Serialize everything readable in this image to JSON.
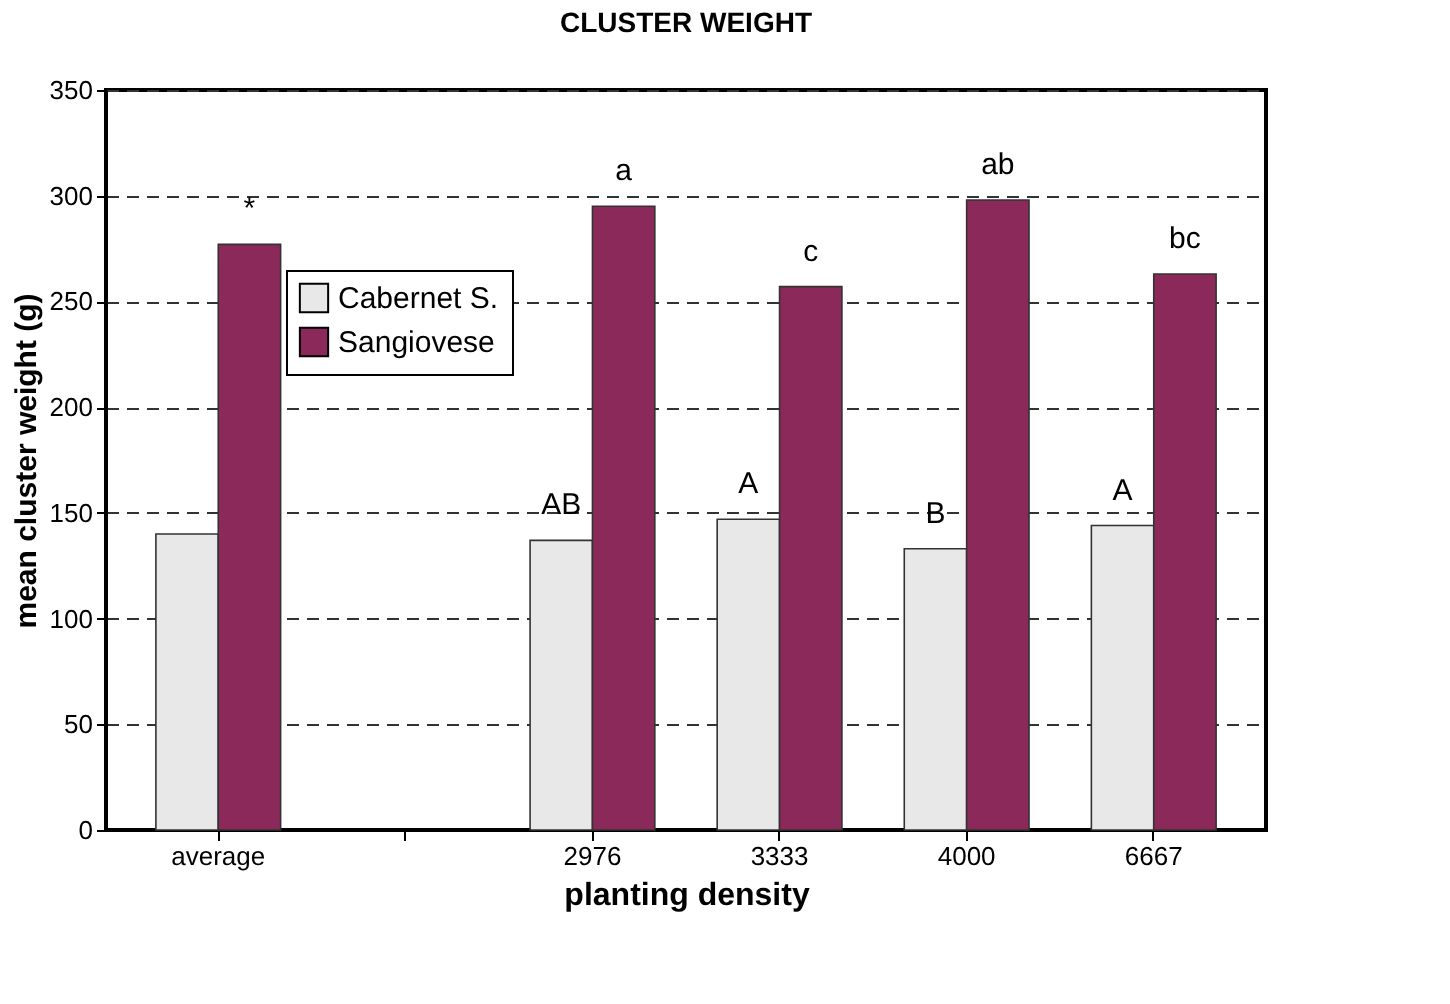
{
  "chart_data": {
    "type": "bar",
    "title": "CLUSTER WEIGHT",
    "xlabel": "planting density",
    "ylabel": "mean cluster weight (g)",
    "categories": [
      "average",
      null,
      "2976",
      "3333",
      "4000",
      "6667"
    ],
    "series": [
      {
        "name": "Cabernet S.",
        "color": "#e8e8e8",
        "values": [
          140,
          null,
          137,
          147,
          133,
          144
        ]
      },
      {
        "name": "Sangiovese",
        "color": "#8b2a5a",
        "values": [
          277,
          null,
          295,
          257,
          298,
          263
        ]
      }
    ],
    "ylim": [
      0,
      350
    ],
    "yticks": [
      0,
      50,
      100,
      150,
      200,
      250,
      300,
      350
    ],
    "grid": "y",
    "legend": "top left",
    "annotations": [
      {
        "text": "*",
        "x": "average",
        "y": 277
      },
      {
        "text": "AB",
        "x": "2976",
        "y": 137
      },
      {
        "text": "a",
        "x": "2976",
        "y": 295
      },
      {
        "text": "A",
        "x": "3333",
        "y": 147
      },
      {
        "text": "c",
        "x": "3333",
        "y": 257
      },
      {
        "text": "B",
        "x": "4000",
        "y": 133
      },
      {
        "text": "ab",
        "x": "4000",
        "y": 298
      },
      {
        "text": "A",
        "x": "6667",
        "y": 144
      },
      {
        "text": "bc",
        "x": "6667",
        "y": 263
      }
    ]
  }
}
